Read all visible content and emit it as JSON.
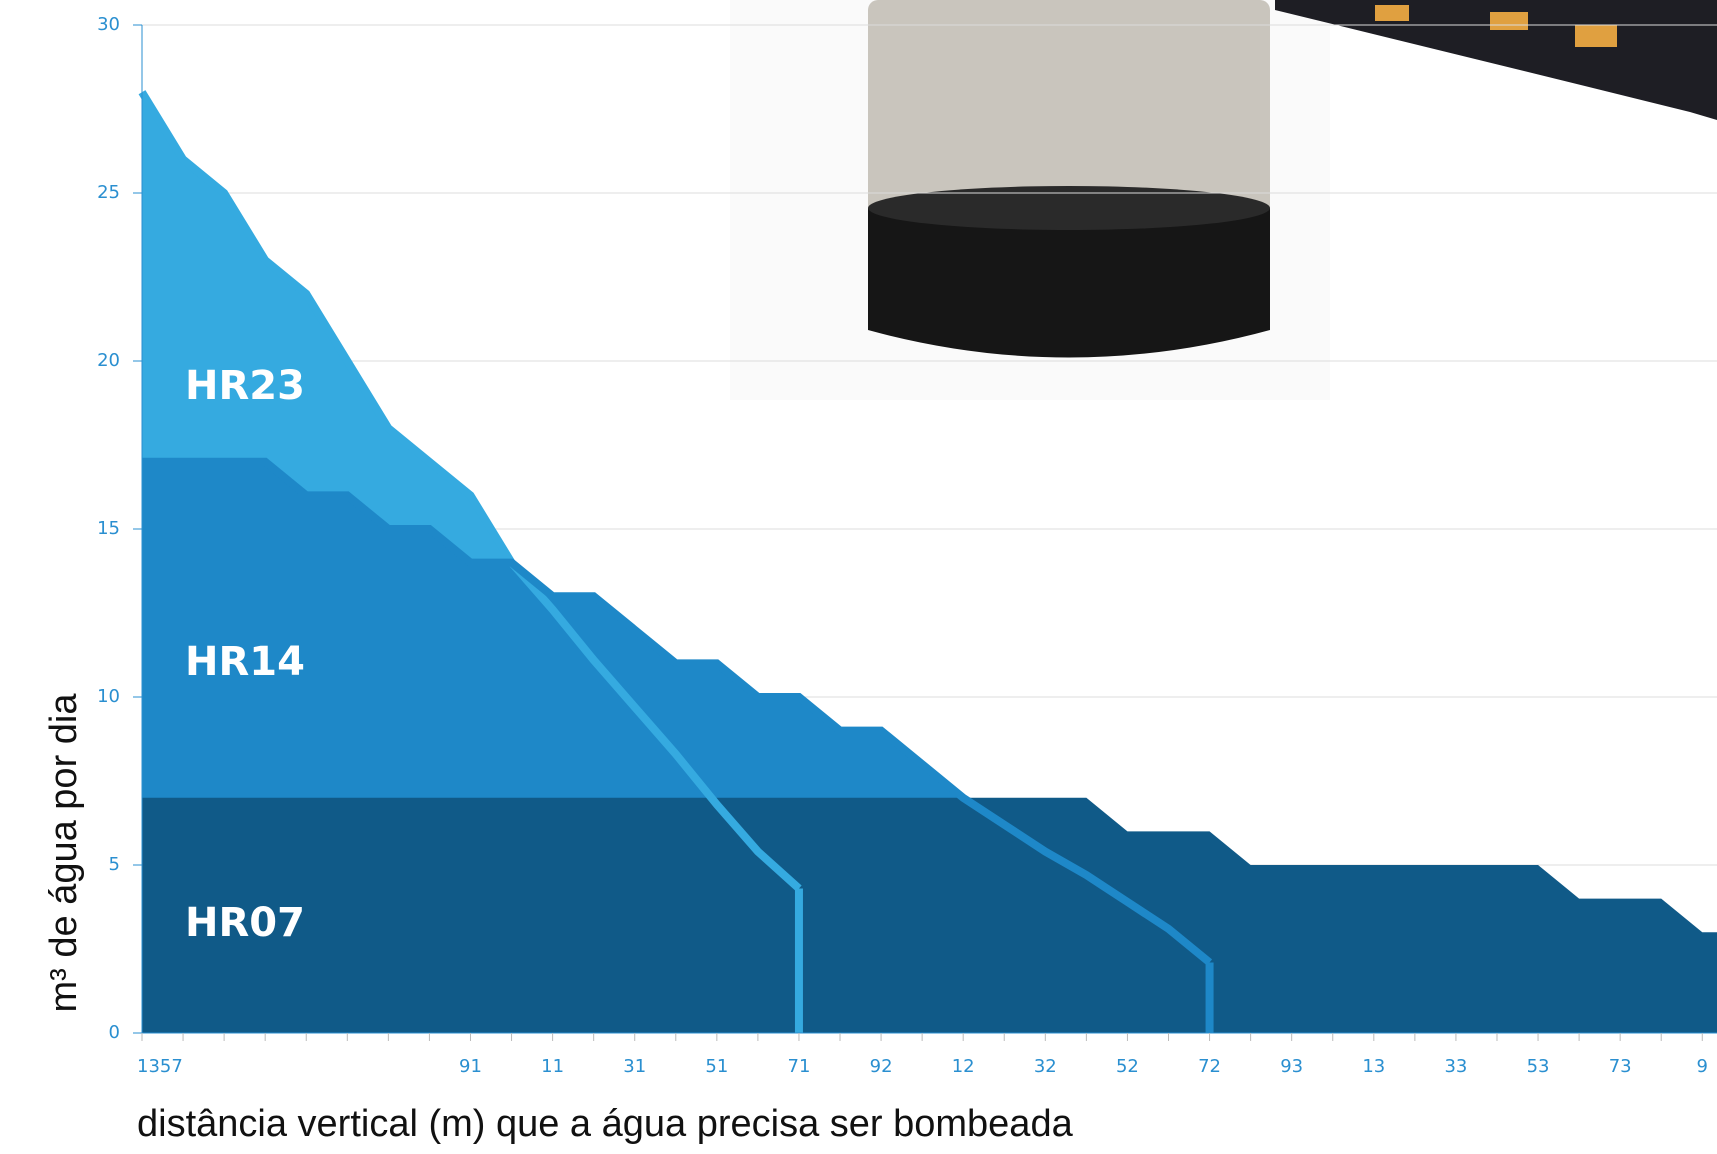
{
  "chart_data": {
    "type": "area",
    "y_label": "m³ de água por dia",
    "x_label": "distância vertical (m) que a água precisa ser bombeada",
    "categories": [
      "1357",
      null,
      null,
      null,
      null,
      null,
      null,
      null,
      "91",
      null,
      "11",
      null,
      "31",
      null,
      "51",
      null,
      "71",
      null,
      "92",
      null,
      "12",
      null,
      "32",
      null,
      "52",
      null,
      "72",
      null,
      "93",
      null,
      "13",
      null,
      "33",
      null,
      "53",
      null,
      "73",
      null,
      "9"
    ],
    "ylim": [
      0,
      30
    ],
    "yticks": [
      0,
      5,
      10,
      15,
      20,
      25,
      30
    ],
    "grid": true,
    "series": [
      {
        "name": "HR23",
        "color": "#35aae0",
        "values": [
          28,
          26,
          25,
          23,
          22,
          20,
          18,
          17,
          16,
          14,
          12.6,
          11.1,
          9.7,
          8.3,
          6.8,
          5.4,
          4.3,
          null,
          null,
          null,
          null,
          null,
          null,
          null,
          null,
          null,
          null,
          null,
          null,
          null,
          null,
          null,
          null,
          null,
          null,
          null,
          null,
          null,
          null
        ]
      },
      {
        "name": "HR14",
        "color": "#1e88c8",
        "values": [
          17,
          17,
          17,
          17,
          16,
          16,
          15,
          15,
          14,
          14,
          13,
          13,
          12,
          11,
          11,
          10,
          10,
          9,
          9,
          8,
          7,
          6.2,
          5.4,
          4.7,
          3.9,
          3.1,
          2.1,
          null,
          null,
          null,
          null,
          null,
          null,
          null,
          null,
          null,
          null,
          null,
          null
        ]
      },
      {
        "name": "HR07",
        "color": "#105a88",
        "values": [
          7,
          7,
          7,
          7,
          7,
          7,
          7,
          7,
          7,
          7,
          7,
          7,
          7,
          7,
          7,
          7,
          7,
          7,
          7,
          7,
          7,
          7,
          7,
          7,
          6,
          6,
          6,
          5,
          5,
          5,
          5,
          5,
          5,
          5,
          5,
          4,
          4,
          4,
          3
        ]
      }
    ]
  }
}
